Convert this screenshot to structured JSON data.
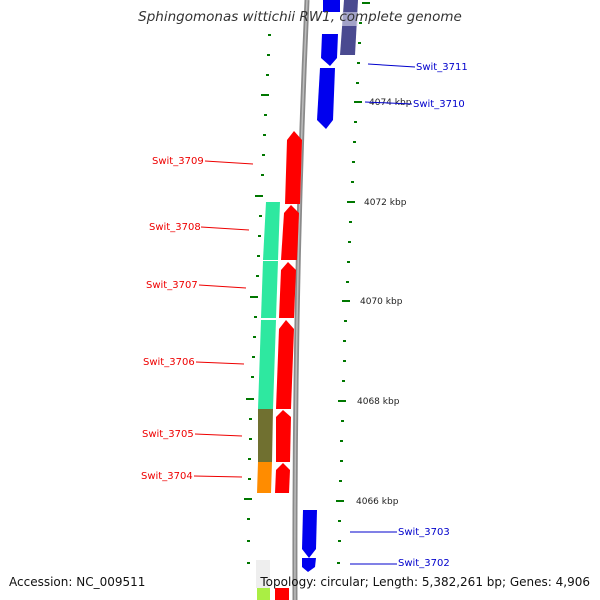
{
  "title": "Sphingomonas wittichii RW1, complete genome",
  "footer": {
    "accession": "Accession: NC_009511",
    "topology": "Topology: circular; Length: 5,382,261 bp; Genes: 4,906"
  },
  "colors": {
    "forward_strand": "#ff0000",
    "reverse_strand": "#0000ee",
    "reverse_dark": "#4a4a90",
    "cog_green": "#2ee8a0",
    "cog_olive": "#707030",
    "cog_orange": "#ff8c00",
    "cog_lime": "#aaee44",
    "backbone": "#808080",
    "tick": "#007700",
    "label_forward": "#ee0000",
    "label_reverse": "#0000cc"
  },
  "scale": {
    "ticks_kbp": [
      4066,
      4068,
      4070,
      4072,
      4074
    ],
    "tick_labels": [
      "4066 kbp",
      "4068 kbp",
      "4070 kbp",
      "4072 kbp",
      "4074 kbp"
    ]
  },
  "genes": [
    {
      "name": "Swit_3711",
      "strand": "reverse"
    },
    {
      "name": "Swit_3710",
      "strand": "reverse"
    },
    {
      "name": "Swit_3709",
      "strand": "forward"
    },
    {
      "name": "Swit_3708",
      "strand": "forward"
    },
    {
      "name": "Swit_3707",
      "strand": "forward"
    },
    {
      "name": "Swit_3706",
      "strand": "forward"
    },
    {
      "name": "Swit_3705",
      "strand": "forward"
    },
    {
      "name": "Swit_3704",
      "strand": "forward"
    },
    {
      "name": "Swit_3703",
      "strand": "reverse"
    },
    {
      "name": "Swit_3702",
      "strand": "reverse"
    }
  ]
}
